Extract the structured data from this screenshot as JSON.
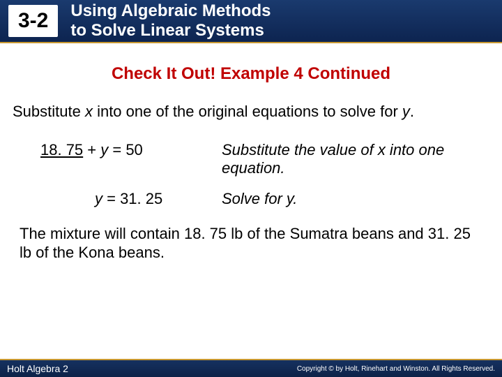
{
  "header": {
    "section_number": "3-2",
    "title_line1": "Using Algebraic Methods",
    "title_line2": "to Solve Linear Systems"
  },
  "subheading": "Check It Out! Example 4 Continued",
  "instruction": {
    "pre": "Substitute ",
    "var1": "x",
    "mid": " into one of the original equations to solve for ",
    "var2": "y",
    "post": "."
  },
  "step1": {
    "value": "18. 75",
    "plus": " + ",
    "var": "y",
    "eq": " = 50",
    "explain": "Substitute the value of x into one equation."
  },
  "step2": {
    "var": "y",
    "eq": " = 31. 25",
    "explain": "Solve for y."
  },
  "conclusion": "The mixture will contain 18. 75 lb of the Sumatra beans and 31. 25 lb of the Kona beans.",
  "footer": {
    "left": "Holt Algebra 2",
    "right": "Copyright © by Holt, Rinehart and Winston. All Rights Reserved."
  },
  "colors": {
    "header_bg_top": "#1a3a6e",
    "header_bg_bottom": "#0d2450",
    "accent_red": "#c00000",
    "gold": "#c89830",
    "text": "#000000",
    "white": "#ffffff"
  }
}
